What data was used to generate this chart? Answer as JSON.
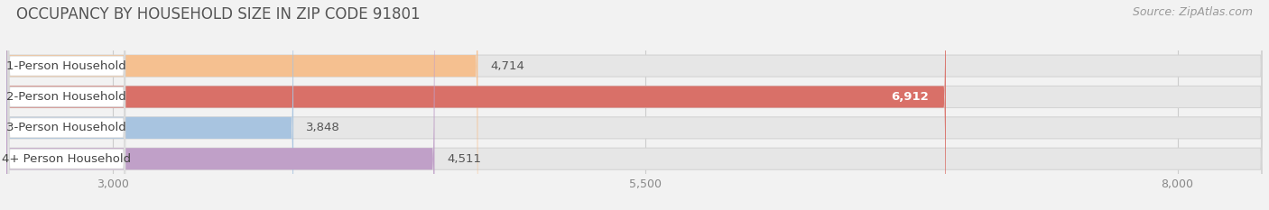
{
  "title": "OCCUPANCY BY HOUSEHOLD SIZE IN ZIP CODE 91801",
  "source": "Source: ZipAtlas.com",
  "categories": [
    "1-Person Household",
    "2-Person Household",
    "3-Person Household",
    "4+ Person Household"
  ],
  "values": [
    4714,
    6912,
    3848,
    4511
  ],
  "bar_colors": [
    "#f5c090",
    "#d97068",
    "#a8c4e0",
    "#c0a0c8"
  ],
  "label_bg_colors": [
    "#f5e0c8",
    "#e8c0b8",
    "#d0dff0",
    "#d8c8e0"
  ],
  "xlim_data": [
    2500,
    8400
  ],
  "x_axis_start": 2800,
  "xticks": [
    3000,
    5500,
    8000
  ],
  "value_labels": [
    "4,714",
    "6,912",
    "3,848",
    "4,511"
  ],
  "value_label_inside": [
    false,
    true,
    false,
    false
  ],
  "background_color": "#f2f2f2",
  "bar_bg_color": "#e8e8e8",
  "title_fontsize": 12,
  "source_fontsize": 9,
  "cat_fontsize": 9.5,
  "val_fontsize": 9.5,
  "tick_fontsize": 9
}
